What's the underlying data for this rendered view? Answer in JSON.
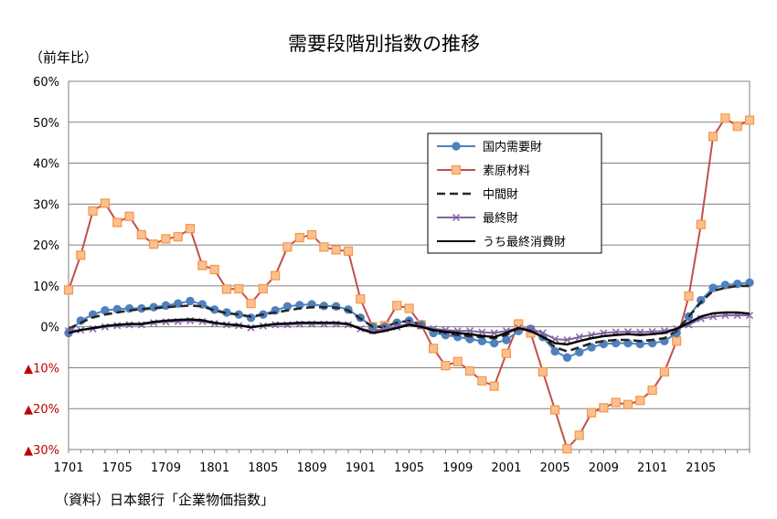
{
  "chart_data": {
    "type": "line",
    "title": "需要段階別指数の推移",
    "unit_label": "（前年比）",
    "source": "（資料）日本銀行「企業物価指数」",
    "ylim": [
      -30,
      60
    ],
    "y_ticks": [
      {
        "value": 60,
        "label": "60%"
      },
      {
        "value": 50,
        "label": "50%"
      },
      {
        "value": 40,
        "label": "40%"
      },
      {
        "value": 30,
        "label": "30%"
      },
      {
        "value": 20,
        "label": "20%"
      },
      {
        "value": 10,
        "label": "10%"
      },
      {
        "value": 0,
        "label": "0%"
      },
      {
        "value": -10,
        "label": "▲10%"
      },
      {
        "value": -20,
        "label": "▲20%"
      },
      {
        "value": -30,
        "label": "▲30%"
      }
    ],
    "x_tick_labels": [
      {
        "index": 0,
        "label": "1701"
      },
      {
        "index": 4,
        "label": "1705"
      },
      {
        "index": 8,
        "label": "1709"
      },
      {
        "index": 12,
        "label": "1801"
      },
      {
        "index": 16,
        "label": "1805"
      },
      {
        "index": 20,
        "label": "1809"
      },
      {
        "index": 24,
        "label": "1901"
      },
      {
        "index": 28,
        "label": "1905"
      },
      {
        "index": 32,
        "label": "1909"
      },
      {
        "index": 36,
        "label": "2001"
      },
      {
        "index": 40,
        "label": "2005"
      },
      {
        "index": 44,
        "label": "2009"
      },
      {
        "index": 48,
        "label": "2101"
      },
      {
        "index": 52,
        "label": "2105"
      }
    ],
    "grid": "horizontal",
    "legend_position": "right-upper",
    "series": [
      {
        "name": "国内需要財",
        "color": "#4f81bd",
        "line_style": "solid",
        "marker": "circle",
        "values": [
          -1.5,
          1.5,
          3,
          4,
          4.3,
          4.5,
          4.5,
          4.8,
          5.2,
          5.7,
          6.3,
          5.5,
          4.2,
          3.5,
          3,
          2.2,
          3,
          4,
          5,
          5.3,
          5.5,
          5.1,
          5,
          4.2,
          2.2,
          0,
          0,
          1,
          1.5,
          0.5,
          -1.5,
          -2,
          -2.5,
          -3,
          -3.5,
          -4,
          -3.2,
          -1,
          -0.5,
          -2.5,
          -6,
          -7.5,
          -6.2,
          -5,
          -4.2,
          -4,
          -4,
          -4.2,
          -4,
          -3.5,
          -1.5,
          2.5,
          6.5,
          9.5,
          10.2,
          10.5,
          10.8
        ]
      },
      {
        "name": "素原材料",
        "color": "#c0504d",
        "line_style": "solid",
        "marker": "square",
        "marker_fill": "#fac090",
        "marker_stroke": "#f79646",
        "values": [
          9,
          17.5,
          28.3,
          30.2,
          25.5,
          27,
          22.5,
          20.2,
          21.5,
          22,
          24,
          15,
          14,
          9.2,
          9.3,
          5.7,
          9.3,
          12.5,
          19.5,
          21.8,
          22.5,
          19.5,
          18.8,
          18.5,
          6.8,
          0,
          0.3,
          5.2,
          4.5,
          0.5,
          -5.3,
          -9.5,
          -8.5,
          -10.8,
          -13.2,
          -14.5,
          -6.5,
          0.7,
          -1.5,
          -11,
          -20.3,
          -29.8,
          -26.5,
          -21,
          -19.8,
          -18.5,
          -19,
          -18,
          -15.5,
          -11,
          -3.5,
          7.5,
          25,
          46.5,
          51,
          49,
          50.5
        ]
      },
      {
        "name": "中間財",
        "color": "#262626",
        "line_style": "dashed",
        "marker": "none",
        "values": [
          -0.5,
          1,
          2.3,
          3,
          3.5,
          4,
          4.3,
          4.5,
          4.8,
          5,
          5.2,
          5,
          4,
          3.3,
          3,
          2.5,
          3,
          3.5,
          4,
          4.5,
          4.8,
          4.8,
          4.7,
          4,
          2,
          0,
          0,
          1,
          1.5,
          0.5,
          -1,
          -1.5,
          -2,
          -2.3,
          -2.5,
          -2.8,
          -2,
          -0.5,
          -1,
          -2.5,
          -5,
          -6,
          -5,
          -4,
          -3.5,
          -3.2,
          -3.2,
          -3.5,
          -3.2,
          -2.8,
          -1,
          2.5,
          6,
          8.8,
          9.5,
          10,
          10
        ]
      },
      {
        "name": "最終財",
        "color": "#8064a2",
        "line_style": "solid",
        "marker": "x",
        "values": [
          -1,
          -0.8,
          -0.5,
          0,
          0.3,
          0.5,
          0.5,
          1,
          1.2,
          1.3,
          1.5,
          1.3,
          0.8,
          0.5,
          0.3,
          -0.2,
          0.2,
          0.5,
          0.5,
          0.7,
          0.7,
          0.7,
          0.7,
          0.5,
          -0.5,
          -1,
          -0.5,
          0,
          0.8,
          0.3,
          -0.5,
          -0.8,
          -1,
          -1,
          -1.3,
          -1.5,
          -1,
          -0.3,
          -0.5,
          -1.5,
          -3,
          -3.2,
          -2.5,
          -2,
          -1.5,
          -1.3,
          -1.2,
          -1.3,
          -1.2,
          -1,
          -0.5,
          0.5,
          2,
          2.5,
          2.8,
          2.8,
          2.8
        ]
      },
      {
        "name": "うち最終消費財",
        "color": "#000000",
        "line_style": "solid",
        "marker": "none",
        "values": [
          -1.5,
          -0.8,
          -0.3,
          0.2,
          0.5,
          0.7,
          0.7,
          1.2,
          1.5,
          1.7,
          1.8,
          1.6,
          1,
          0.6,
          0.4,
          -0.1,
          0.3,
          0.7,
          0.8,
          1,
          1,
          1,
          1,
          0.7,
          -0.5,
          -1.5,
          -1,
          -0.3,
          0.5,
          0,
          -0.8,
          -1.2,
          -1.5,
          -1.8,
          -2.2,
          -2.5,
          -1.5,
          -0.3,
          -1,
          -2.5,
          -4,
          -4.3,
          -3.5,
          -2.8,
          -2.3,
          -2,
          -1.8,
          -2,
          -1.8,
          -1.5,
          -0.5,
          1,
          2.5,
          3.3,
          3.5,
          3.5,
          3.2
        ]
      }
    ]
  }
}
